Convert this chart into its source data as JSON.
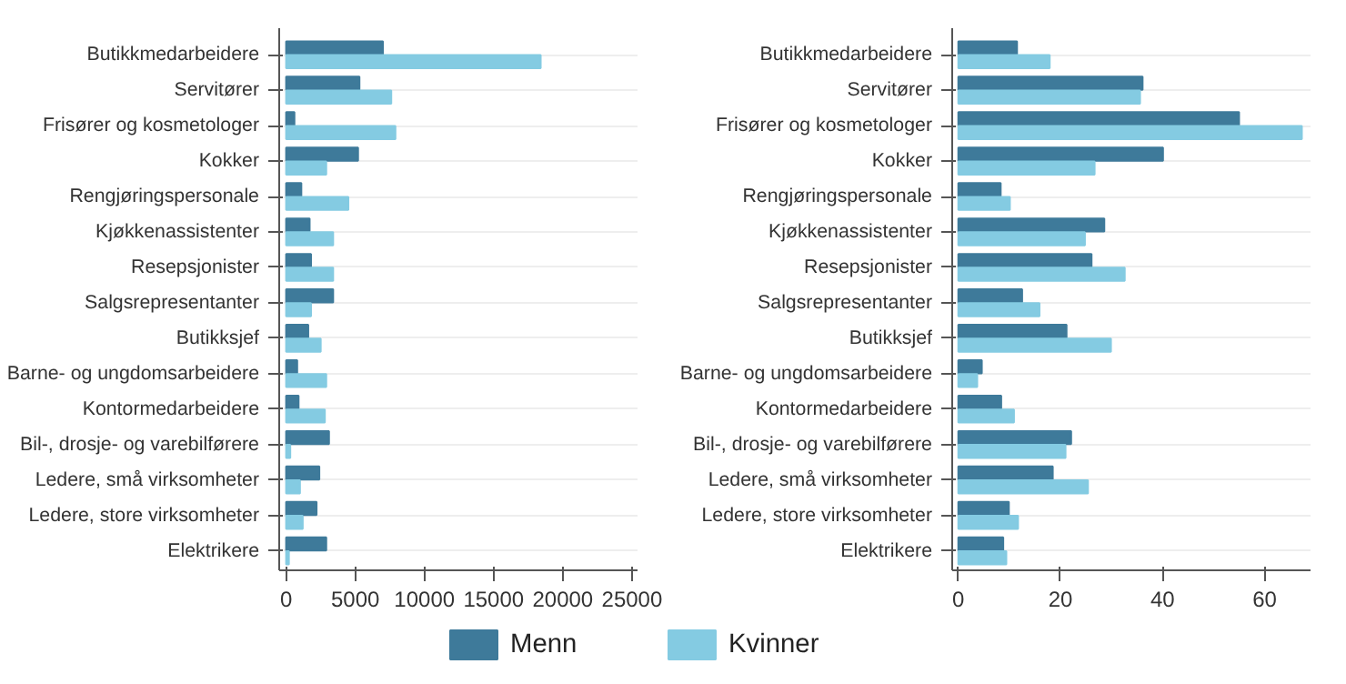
{
  "chart_data": [
    {
      "type": "bar",
      "orientation": "horizontal",
      "categories": [
        "Butikkmedarbeidere",
        "Servitører",
        "Frisører og kosmetologer",
        "Kokker",
        "Rengjøringspersonale",
        "Kjøkkenassistenter",
        "Resepsjonister",
        "Salgsrepresentanter",
        "Butikksjef",
        "Barne- og ungdomsarbeidere",
        "Kontormedarbeidere",
        "Bil-, drosje- og varebilførere",
        "Ledere, små virksomheter",
        "Ledere, store virksomheter",
        "Elektrikere"
      ],
      "series": [
        {
          "name": "Menn",
          "color": "#3e7a9a",
          "values": [
            7000,
            5300,
            600,
            5200,
            1100,
            1700,
            1800,
            3400,
            1600,
            800,
            900,
            3100,
            2400,
            2200,
            2900
          ]
        },
        {
          "name": "Kvinner",
          "color": "#84cbe2",
          "values": [
            18400,
            7600,
            7900,
            2900,
            4500,
            3400,
            3400,
            1800,
            2500,
            2900,
            2800,
            300,
            1000,
            1200,
            200
          ]
        }
      ],
      "xlim": [
        -500,
        25400
      ],
      "xticks": [
        0,
        5000,
        10000,
        15000,
        20000,
        25000
      ],
      "grid": "y",
      "legend": "bottom"
    },
    {
      "type": "bar",
      "orientation": "horizontal",
      "categories": [
        "Butikkmedarbeidere",
        "Servitører",
        "Frisører og kosmetologer",
        "Kokker",
        "Rengjøringspersonale",
        "Kjøkkenassistenter",
        "Resepsjonister",
        "Salgsrepresentanter",
        "Butikksjef",
        "Barne- og ungdomsarbeidere",
        "Kontormedarbeidere",
        "Bil-, drosje- og varebilførere",
        "Ledere, små virksomheter",
        "Ledere, store virksomheter",
        "Elektrikere"
      ],
      "series": [
        {
          "color": "#3e7a9a",
          "values": [
            11.5,
            36.1,
            55,
            40.1,
            8.3,
            28.6,
            26.1,
            12.5,
            21.2,
            4.6,
            8.4,
            22.1,
            18.5,
            9.9,
            8.8
          ]
        },
        {
          "color": "#84cbe2",
          "values": [
            17.9,
            35.6,
            67.3,
            26.7,
            10.1,
            24.8,
            32.6,
            15.9,
            29.9,
            3.7,
            10.9,
            21,
            25.4,
            11.7,
            9.4
          ]
        }
      ],
      "xlim": [
        -1.2,
        69
      ],
      "xticks": [
        0,
        20,
        40,
        60
      ],
      "grid": "y"
    }
  ]
}
